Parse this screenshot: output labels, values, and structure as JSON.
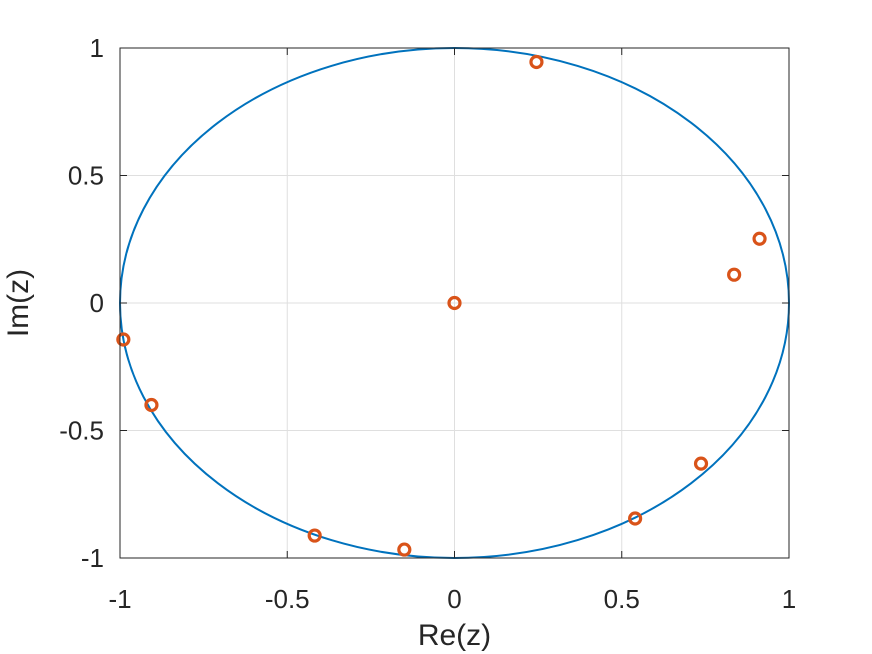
{
  "chart_data": {
    "type": "scatter",
    "title": "",
    "xlabel": "Re(z)",
    "ylabel": "Im(z)",
    "xlim": [
      -1,
      1
    ],
    "ylim": [
      -1,
      1
    ],
    "grid": true,
    "xticks": [
      -1,
      -0.5,
      0,
      0.5,
      1
    ],
    "yticks": [
      -1,
      -0.5,
      0,
      0.5,
      1
    ],
    "xtick_labels": [
      "-1",
      "-0.5",
      "0",
      "0.5",
      "1"
    ],
    "ytick_labels": [
      "-1",
      "-0.5",
      "0",
      "0.5",
      "1"
    ],
    "unit_circle": {
      "type": "line",
      "shape": "unit circle",
      "color": "#0072BD"
    },
    "series": [
      {
        "marker": "circle",
        "color": "#D95319",
        "points": [
          {
            "x": 0.0,
            "y": 0.0
          },
          {
            "x": 0.245,
            "y": 0.945
          },
          {
            "x": 0.912,
            "y": 0.252
          },
          {
            "x": 0.836,
            "y": 0.111
          },
          {
            "x": -0.99,
            "y": -0.143
          },
          {
            "x": -0.906,
            "y": -0.4
          },
          {
            "x": 0.737,
            "y": -0.63
          },
          {
            "x": 0.54,
            "y": -0.845
          },
          {
            "x": -0.418,
            "y": -0.912
          },
          {
            "x": -0.15,
            "y": -0.967
          }
        ]
      }
    ]
  }
}
